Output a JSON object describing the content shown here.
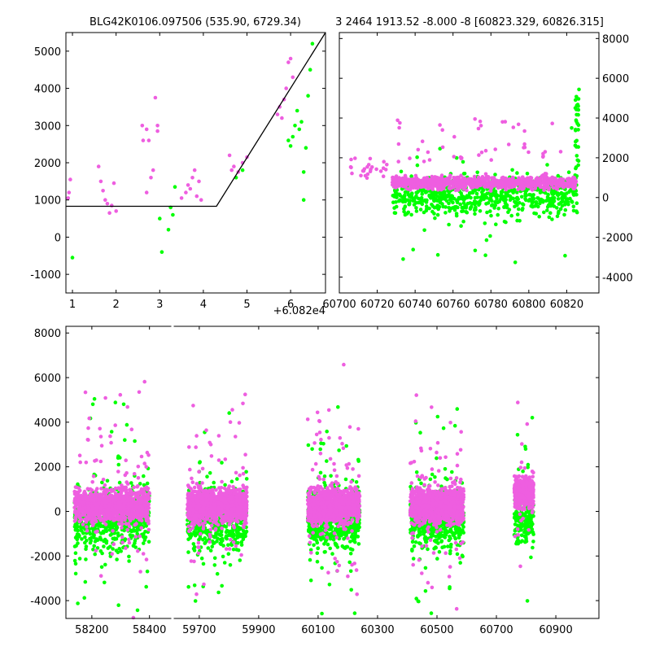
{
  "figure": {
    "title_left": "BLG42K0106.097506 (535.90, 6729.34)",
    "title_right": "3 2464 1913.52 -8.000 -8 [60823.329, 60826.315]",
    "offset_label": "+6.082e4"
  },
  "colors": {
    "series_a": "#ee5ee0",
    "series_b": "#00ff00",
    "model_line": "#000000",
    "axes": "#000000"
  },
  "chart_data": [
    {
      "id": "top-left",
      "type": "scatter",
      "title": "BLG42K0106.097506 (535.90, 6729.34)",
      "x_offset_note": "+6.082e4",
      "xlim": [
        0.85,
        6.8
      ],
      "ylim": [
        -1500,
        5500
      ],
      "xticks": [
        1,
        2,
        3,
        4,
        5,
        6
      ],
      "yticks": [
        -1000,
        0,
        1000,
        2000,
        3000,
        4000,
        5000
      ],
      "yaxis_side": "left",
      "series": [
        {
          "color": "#ee5ee0",
          "points": [
            [
              0.9,
              1050
            ],
            [
              0.92,
              1200
            ],
            [
              0.95,
              1550
            ],
            [
              1.6,
              1900
            ],
            [
              1.65,
              1500
            ],
            [
              1.7,
              1250
            ],
            [
              1.75,
              1000
            ],
            [
              1.8,
              900
            ],
            [
              1.85,
              650
            ],
            [
              1.9,
              850
            ],
            [
              1.95,
              1450
            ],
            [
              2.0,
              700
            ],
            [
              2.6,
              3000
            ],
            [
              2.62,
              2600
            ],
            [
              2.7,
              2900
            ],
            [
              2.75,
              2600
            ],
            [
              2.8,
              1600
            ],
            [
              2.85,
              1800
            ],
            [
              2.9,
              3750
            ],
            [
              2.95,
              3000
            ],
            [
              2.95,
              2850
            ],
            [
              2.7,
              1200
            ],
            [
              3.5,
              1050
            ],
            [
              3.6,
              1200
            ],
            [
              3.65,
              1400
            ],
            [
              3.7,
              1300
            ],
            [
              3.75,
              1600
            ],
            [
              3.8,
              1800
            ],
            [
              3.85,
              1100
            ],
            [
              3.9,
              1500
            ],
            [
              3.95,
              1000
            ],
            [
              4.6,
              2200
            ],
            [
              4.65,
              1800
            ],
            [
              4.7,
              1900
            ],
            [
              4.8,
              1750
            ],
            [
              4.9,
              2000
            ],
            [
              5.0,
              2150
            ],
            [
              5.7,
              3300
            ],
            [
              5.75,
              3500
            ],
            [
              5.8,
              3200
            ],
            [
              5.85,
              3700
            ],
            [
              5.9,
              4000
            ],
            [
              5.95,
              4700
            ],
            [
              6.0,
              4800
            ],
            [
              6.05,
              4300
            ]
          ]
        },
        {
          "color": "#00ff00",
          "points": [
            [
              1.0,
              -550
            ],
            [
              3.0,
              500
            ],
            [
              3.05,
              -400
            ],
            [
              3.2,
              200
            ],
            [
              3.25,
              800
            ],
            [
              3.3,
              600
            ],
            [
              3.35,
              1350
            ],
            [
              4.75,
              1600
            ],
            [
              4.9,
              1800
            ],
            [
              5.95,
              2600
            ],
            [
              6.0,
              2450
            ],
            [
              6.05,
              2700
            ],
            [
              6.1,
              3000
            ],
            [
              6.15,
              3400
            ],
            [
              6.2,
              2900
            ],
            [
              6.25,
              3100
            ],
            [
              6.3,
              1750
            ],
            [
              6.35,
              2400
            ],
            [
              6.3,
              1000
            ],
            [
              6.4,
              3800
            ],
            [
              6.45,
              4500
            ],
            [
              6.5,
              5200
            ]
          ]
        }
      ],
      "model": [
        [
          0.85,
          830
        ],
        [
          4.3,
          830
        ],
        [
          6.8,
          5500
        ]
      ]
    },
    {
      "id": "top-right",
      "type": "scatter",
      "title": "3 2464 1913.52 -8.000 -8 [60823.329, 60826.315]",
      "xlim": [
        60700,
        60837
      ],
      "ylim": [
        -4800,
        8300
      ],
      "xticks": [
        60700,
        60720,
        60740,
        60760,
        60780,
        60800,
        60820
      ],
      "yticks": [
        -4000,
        -2000,
        0,
        2000,
        4000,
        6000,
        8000
      ],
      "yaxis_side": "right",
      "series": [
        {
          "color": "#ee5ee0",
          "name_key": "series_a"
        },
        {
          "color": "#00ff00",
          "name_key": "series_b"
        }
      ],
      "model": [
        [
          60700,
          800
        ],
        [
          60824,
          800
        ],
        [
          60827,
          8300
        ]
      ]
    },
    {
      "id": "bottom",
      "type": "scatter",
      "xlim_segments": [
        [
          58110,
          58480
        ],
        [
          59610,
          61045
        ]
      ],
      "ylim": [
        -4800,
        8300
      ],
      "xticks": [
        58200,
        58400,
        59700,
        59900,
        60100,
        60300,
        60500,
        60700,
        60900
      ],
      "yticks": [
        -4000,
        -2000,
        0,
        2000,
        4000,
        6000,
        8000
      ],
      "yaxis_side": "left",
      "series": [
        {
          "color": "#ee5ee0",
          "name_key": "series_a"
        },
        {
          "color": "#00ff00",
          "name_key": "series_b"
        }
      ],
      "seasons": [
        [
          58140,
          58400
        ],
        [
          59660,
          59860
        ],
        [
          60065,
          60240
        ],
        [
          60410,
          60590
        ],
        [
          60760,
          60825
        ]
      ],
      "model": [
        [
          60680,
          800
        ],
        [
          60824,
          800
        ],
        [
          60827,
          8300
        ]
      ]
    }
  ]
}
